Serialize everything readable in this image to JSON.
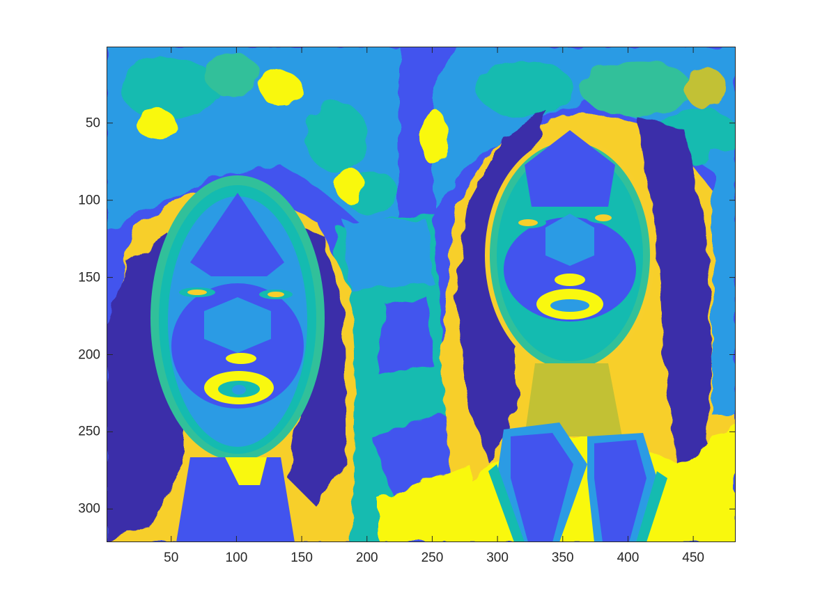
{
  "figure": {
    "type": "indexed-color image plot (imagesc)",
    "colormap": "parula",
    "palette": {
      "dark_navy": "#3a2ea9",
      "blue": "#4254ee",
      "light_blue": "#2b9be4",
      "teal": "#14bbb0",
      "sea_green": "#31c09a",
      "olive": "#c2c134",
      "gold": "#f7cf2c",
      "yellow": "#f9f80f",
      "axes_edge": "#262626",
      "background": "#ffffff"
    },
    "content": "false-color rendering of two women's faces side by side"
  },
  "axes": {
    "xlim": [
      0.5,
      482.5
    ],
    "ylim": [
      0.5,
      321.5
    ],
    "y_reversed": true,
    "xticks": [
      50,
      100,
      150,
      200,
      250,
      300,
      350,
      400,
      450
    ],
    "yticks": [
      50,
      100,
      150,
      200,
      250,
      300
    ],
    "xtick_labels": [
      "50",
      "100",
      "150",
      "200",
      "250",
      "300",
      "350",
      "400",
      "450"
    ],
    "ytick_labels": [
      "50",
      "100",
      "150",
      "200",
      "250",
      "300"
    ]
  }
}
